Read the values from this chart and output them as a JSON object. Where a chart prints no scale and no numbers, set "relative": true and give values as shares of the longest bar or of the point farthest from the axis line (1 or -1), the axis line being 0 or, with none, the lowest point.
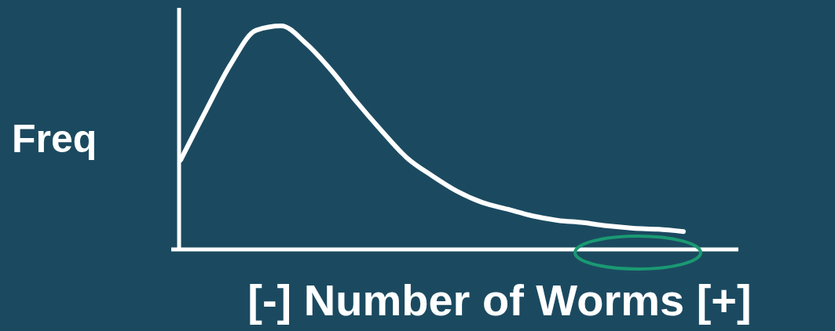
{
  "chart_data": {
    "type": "line",
    "relative": true,
    "ylabel": "Freq",
    "xlabel": "[-] Number of Worms [+]",
    "categories": [
      null,
      null,
      null,
      null,
      null,
      null,
      null,
      null,
      null,
      null,
      null,
      null,
      null,
      null,
      null,
      null,
      null,
      null,
      null,
      null,
      null
    ],
    "series": [
      {
        "color": "#ffffff",
        "values": [
          0.4,
          0.62,
          0.83,
          0.98,
          1.0,
          0.92,
          0.8,
          0.66,
          0.53,
          0.41,
          0.33,
          0.26,
          0.21,
          0.18,
          0.15,
          0.13,
          0.12,
          0.105,
          0.095,
          0.09,
          0.08
        ]
      }
    ]
  }
}
